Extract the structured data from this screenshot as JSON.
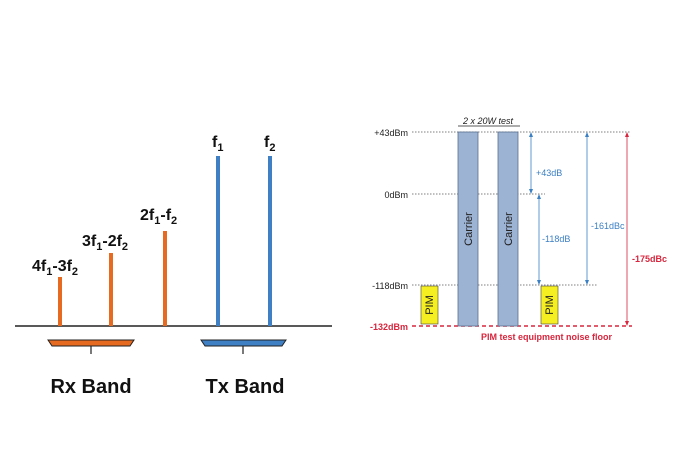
{
  "left_diagram": {
    "tones": [
      {
        "base": "4f",
        "s1": "1",
        "mid": "-3f",
        "s2": "2",
        "color": "#e66a1f"
      },
      {
        "base": "3f",
        "s1": "1",
        "mid": "-2f",
        "s2": "2",
        "color": "#e66a1f"
      },
      {
        "base": "2f",
        "s1": "1",
        "mid": "-f",
        "s2": "2",
        "color": "#e66a1f"
      },
      {
        "base": "f",
        "s1": "1",
        "mid": "",
        "s2": "",
        "color": "#3f7fc4"
      },
      {
        "base": "f",
        "s1": "2",
        "mid": "",
        "s2": "",
        "color": "#3f7fc4"
      }
    ],
    "rx_band_label": "Rx Band",
    "tx_band_label": "Tx Band",
    "rx_color": "#e66a1f",
    "tx_color": "#3f7fc4"
  },
  "right_diagram": {
    "title": "2 x 20W test",
    "levels": {
      "top": "+43dBm",
      "zero": "0dBm",
      "pim": "-118dBm",
      "floor": "-132dBm"
    },
    "carrier_label": "Carrier",
    "pim_label": "PIM",
    "dim_43": "+43dB",
    "dim_118": "-118dB",
    "dim_161": "-161dBc",
    "dim_175": "-175dBc",
    "noise_floor_label": "PIM test equipment noise floor",
    "carrier_color": "#9db3d3",
    "pim_color": "#f5ee21",
    "red_color": "#d7263d",
    "blue_color": "#3b7fc4"
  }
}
